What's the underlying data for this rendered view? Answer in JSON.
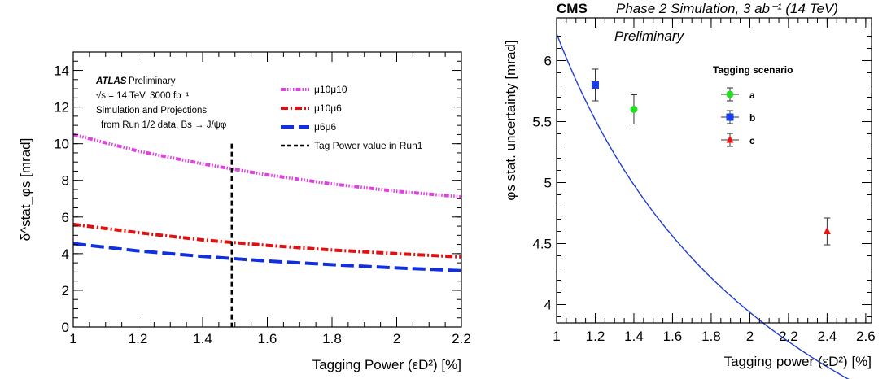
{
  "chart_data": [
    {
      "type": "line",
      "experiment": "ATLAS",
      "status": "Preliminary",
      "info_lines": [
        "√s = 14 TeV, 3000 fb⁻¹",
        "Simulation and Projections",
        "from Run 1/2 data, Bs → J/ψφ"
      ],
      "xlabel": "Tagging Power (εD²) [%]",
      "ylabel": "δ^stat_φs [mrad]",
      "xlim": [
        1,
        2.2
      ],
      "ylim": [
        0,
        15
      ],
      "x_ticks": [
        "1",
        "1.2",
        "1.4",
        "1.6",
        "1.8",
        "2",
        "2.2"
      ],
      "y_ticks": [
        "0",
        "2",
        "4",
        "6",
        "8",
        "10",
        "12",
        "14"
      ],
      "series": [
        {
          "name": "μ10μ10",
          "color": "#e040e0",
          "x": [
            1.0,
            1.2,
            1.4,
            1.6,
            1.8,
            2.0,
            2.2
          ],
          "values": [
            10.5,
            9.6,
            8.9,
            8.3,
            7.8,
            7.4,
            7.1
          ]
        },
        {
          "name": "μ10μ6",
          "color": "#e01010",
          "x": [
            1.0,
            1.2,
            1.4,
            1.6,
            1.8,
            2.0,
            2.2
          ],
          "values": [
            5.6,
            5.15,
            4.75,
            4.45,
            4.2,
            4.0,
            3.82
          ]
        },
        {
          "name": "μ6μ6",
          "color": "#1030e0",
          "x": [
            1.0,
            1.2,
            1.4,
            1.6,
            1.8,
            2.0,
            2.2
          ],
          "values": [
            4.55,
            4.15,
            3.85,
            3.6,
            3.4,
            3.22,
            3.07
          ]
        }
      ],
      "vline": {
        "name": "Tag Power value in Run1",
        "x": 1.49
      }
    },
    {
      "type": "scatter",
      "experiment": "CMS",
      "header_text": "Phase 2 Simulation, 3 ab⁻¹ (14 TeV)",
      "status": "Preliminary",
      "legend_title": "Tagging scenario",
      "xlabel": "Tagging power (εD²) [%]",
      "ylabel": "φs stat. uncertainty [mrad]",
      "xlim": [
        1,
        2.63
      ],
      "ylim": [
        3.85,
        6.35
      ],
      "x_ticks": [
        "1",
        "1.2",
        "1.4",
        "1.6",
        "1.8",
        "2",
        "2.2",
        "2.4",
        "2.6"
      ],
      "y_ticks": [
        "4",
        "4.5",
        "5",
        "5.5",
        "6"
      ],
      "points": [
        {
          "name": "a",
          "x": 1.4,
          "y": 5.6,
          "err": 0.12,
          "color": "#22dd22",
          "marker": "circle"
        },
        {
          "name": "b",
          "x": 1.2,
          "y": 5.8,
          "err": 0.13,
          "color": "#1a3ee6",
          "marker": "square"
        },
        {
          "name": "c",
          "x": 2.4,
          "y": 4.6,
          "err": 0.11,
          "color": "#ee1111",
          "marker": "triangle"
        }
      ],
      "fit": {
        "color": "#1f3fd0",
        "a": 6.22,
        "p": 0.66
      }
    }
  ]
}
